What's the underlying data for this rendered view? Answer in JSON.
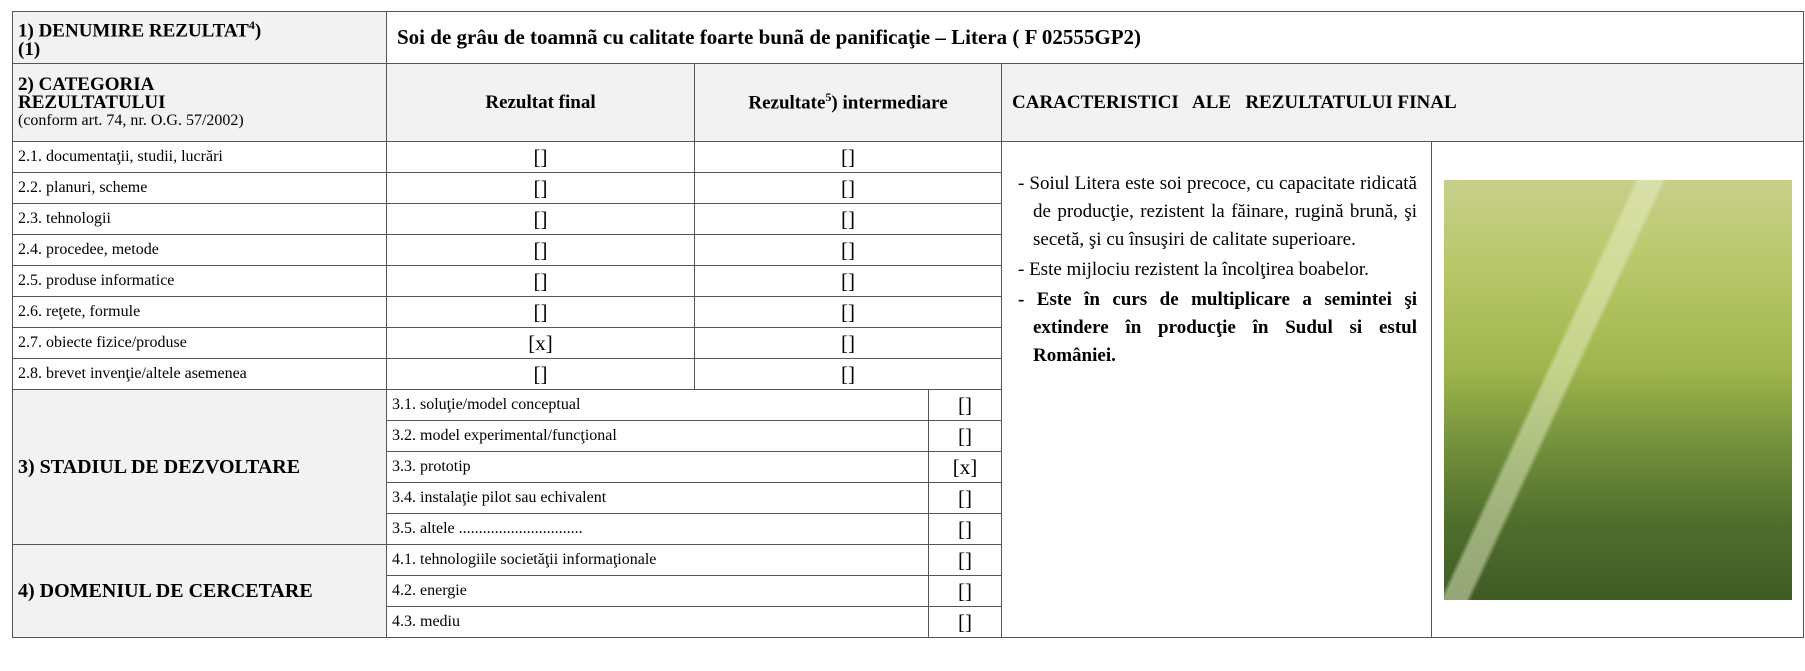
{
  "header": {
    "label": "1) DENUMIRE REZULTAT",
    "label_sup": "4",
    "label_suffix": ")",
    "label_note": "(1)",
    "title": "Soi de grâu de toamnã cu calitate foarte bunã de panificaţie – Litera ( F 02555GP2)"
  },
  "category": {
    "label": "2) CATEGORIA REZULTATULUI",
    "note": "(conform art. 74, nr. O.G. 57/2002)",
    "final_header": "Rezultat final",
    "intermediate_header": "Rezultate",
    "intermediate_sup": "5",
    "intermediate_suffix": ") intermediare",
    "characteristics_header": "CARACTERISTICI   ALE   REZULTATULUI FINAL",
    "rows": [
      {
        "label": "2.1. documentaţii, studii, lucrări",
        "final": "[]",
        "intermediate": "[]"
      },
      {
        "label": "2.2. planuri, scheme",
        "final": "[]",
        "intermediate": "[]"
      },
      {
        "label": "2.3. tehnologii",
        "final": "[]",
        "intermediate": "[]"
      },
      {
        "label": "2.4. procedee, metode",
        "final": "[]",
        "intermediate": "[]"
      },
      {
        "label": "2.5. produse informatice",
        "final": "[]",
        "intermediate": "[]"
      },
      {
        "label": "2.6. reţete, formule",
        "final": "[]",
        "intermediate": "[]"
      },
      {
        "label": "2.7. obiecte fizice/produse",
        "final": "[x]",
        "intermediate": "[]"
      },
      {
        "label": "2.8. brevet invenţie/altele asemenea",
        "final": "[]",
        "intermediate": "[]"
      }
    ]
  },
  "stage": {
    "label": "3) STADIUL DE DEZVOLTARE",
    "rows": [
      {
        "label": "3.1. soluţie/model conceptual",
        "mark": "[]"
      },
      {
        "label": "3.2. model experimental/funcţional",
        "mark": "[]"
      },
      {
        "label": "3.3. prototip",
        "mark": "[x]"
      },
      {
        "label": "3.4. instalaţie pilot sau echivalent",
        "mark": "[]"
      },
      {
        "label": "3.5. altele ...............................",
        "mark": "[]"
      }
    ]
  },
  "domain": {
    "label": "4) DOMENIUL DE CERCETARE",
    "rows": [
      {
        "label": "4.1. tehnologiile societăţii informaţionale",
        "mark": "[]"
      },
      {
        "label": "4.2. energie",
        "mark": "[]"
      },
      {
        "label": "4.3. mediu",
        "mark": "[]"
      }
    ]
  },
  "characteristics": [
    {
      "text": "- Soiul Litera este soi precoce, cu capacitate ridicată de producţie, rezistent la făinare, rugină brună, şi secetă, şi cu însuşiri de calitate superioare.",
      "bold": false
    },
    {
      "text": "- Este mijlociu rezistent la încolţirea boabelor.",
      "bold": false
    },
    {
      "text": "- Este în curs de multiplicare a semintei şi extindere în producţie în Sudul si estul României.",
      "bold": true
    }
  ]
}
